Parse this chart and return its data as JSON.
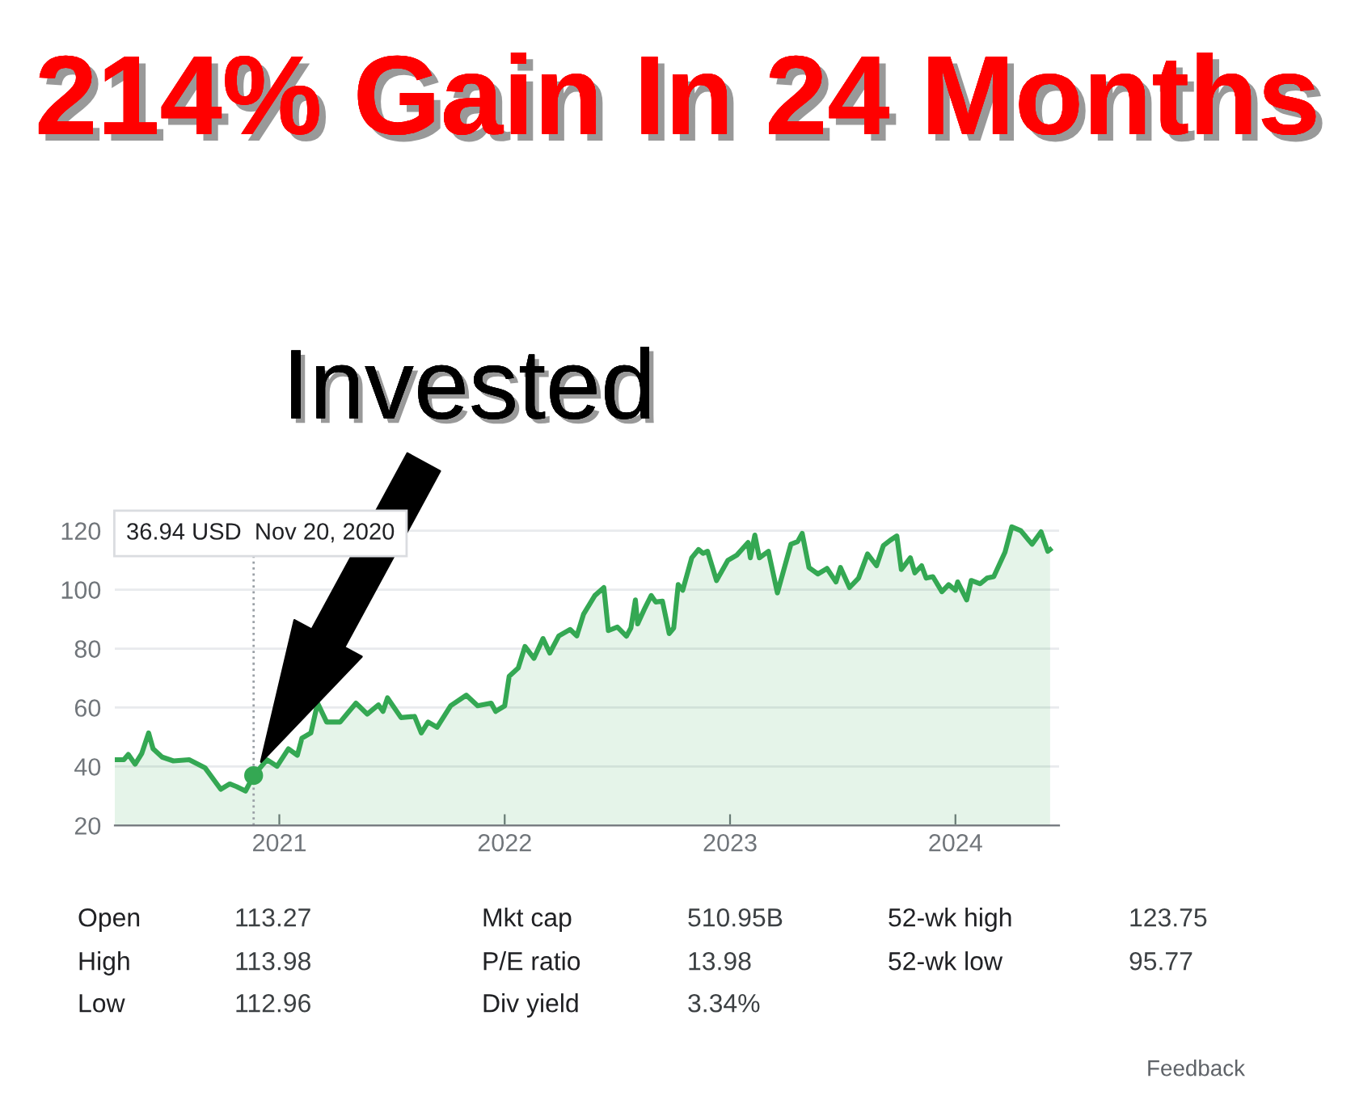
{
  "chart_data": {
    "type": "area",
    "title": "214% Gain In 24 Months",
    "x": [
      2020.27,
      2020.31,
      2020.33,
      2020.36,
      2020.39,
      2020.42,
      2020.44,
      2020.48,
      2020.53,
      2020.6,
      2020.67,
      2020.74,
      2020.78,
      2020.81,
      2020.85,
      2020.886,
      2020.945,
      2020.99,
      2021.04,
      2021.08,
      2021.1,
      2021.14,
      2021.17,
      2021.21,
      2021.27,
      2021.34,
      2021.39,
      2021.44,
      2021.46,
      2021.48,
      2021.54,
      2021.6,
      2021.63,
      2021.66,
      2021.7,
      2021.76,
      2021.83,
      2021.88,
      2021.94,
      2021.96,
      2022.0,
      2022.02,
      2022.06,
      2022.09,
      2022.13,
      2022.17,
      2022.2,
      2022.24,
      2022.29,
      2022.32,
      2022.35,
      2022.4,
      2022.44,
      2022.46,
      2022.5,
      2022.54,
      2022.56,
      2022.58,
      2022.59,
      2022.62,
      2022.65,
      2022.67,
      2022.7,
      2022.73,
      2022.75,
      2022.77,
      2022.79,
      2022.83,
      2022.86,
      2022.88,
      2022.9,
      2022.94,
      2022.99,
      2023.03,
      2023.08,
      2023.09,
      2023.11,
      2023.13,
      2023.17,
      2023.21,
      2023.27,
      2023.3,
      2023.32,
      2023.35,
      2023.39,
      2023.43,
      2023.47,
      2023.49,
      2023.53,
      2023.57,
      2023.61,
      2023.65,
      2023.68,
      2023.71,
      2023.74,
      2023.76,
      2023.8,
      2023.82,
      2023.85,
      2023.87,
      2023.9,
      2023.94,
      2023.97,
      2024.0,
      2024.01,
      2024.05,
      2024.07,
      2024.11,
      2024.14,
      2024.17,
      2024.22,
      2024.25,
      2024.29,
      2024.34,
      2024.38,
      2024.41,
      2024.42
    ],
    "series": [
      {
        "color": "#34a853",
        "values": [
          42.3,
          42.3,
          44.1,
          40.8,
          44.5,
          51.4,
          46.0,
          43.2,
          41.9,
          42.3,
          39.6,
          32.3,
          34.1,
          33.2,
          31.7,
          36.94,
          42.3,
          40.1,
          46.0,
          43.8,
          49.6,
          51.4,
          61.5,
          55.1,
          55.1,
          61.5,
          57.8,
          60.9,
          58.7,
          63.3,
          56.6,
          57.0,
          51.4,
          55.1,
          53.3,
          60.6,
          64.2,
          60.6,
          61.5,
          58.7,
          60.6,
          70.6,
          73.4,
          80.7,
          76.7,
          83.4,
          78.5,
          84.3,
          86.5,
          84.3,
          91.7,
          98.0,
          100.7,
          86.1,
          87.3,
          84.2,
          87.0,
          96.5,
          88.4,
          93.4,
          98.0,
          95.8,
          96.1,
          85.1,
          87.0,
          101.7,
          99.8,
          110.8,
          113.6,
          112.3,
          113.0,
          103.1,
          109.9,
          111.7,
          116.0,
          110.8,
          118.5,
          110.8,
          113.0,
          98.9,
          115.4,
          116.3,
          119.1,
          107.5,
          105.3,
          107.2,
          102.6,
          107.5,
          100.7,
          103.9,
          112.1,
          108.1,
          114.9,
          116.7,
          118.2,
          106.8,
          110.8,
          105.7,
          108.1,
          103.9,
          104.4,
          99.3,
          101.7,
          99.8,
          102.6,
          96.5,
          103.1,
          102.0,
          103.9,
          104.4,
          112.7,
          121.3,
          120.0,
          115.4,
          119.6,
          113.0,
          113.6
        ]
      },
      {
        "type": "scatter",
        "color": "#34a853",
        "x": [
          2020.886
        ],
        "values": [
          36.94
        ],
        "marker": "circle"
      }
    ],
    "xlim": [
      2020.27,
      2024.46
    ],
    "xticks": [
      2021,
      2022,
      2023,
      2024
    ],
    "ylim": [
      20,
      124
    ],
    "yticks": [
      20,
      40,
      60,
      80,
      100,
      120
    ],
    "grid": "y",
    "marker": "none",
    "line_style": "solid",
    "ref_lines": [
      {
        "axis": "x",
        "value": 2020.886,
        "color": "#9aa0a6",
        "line_style": "dotted"
      }
    ],
    "annotations": [
      "36.94 USD  Nov 20, 2020",
      "Invested",
      "Open",
      "113.27",
      "Mkt cap",
      "510.95B",
      "52-wk high",
      "123.75",
      "High",
      "113.98",
      "P/E ratio",
      "13.98",
      "52-wk low",
      "95.77",
      "Low",
      "112.96",
      "Div yield",
      "3.34%",
      "Feedback"
    ]
  }
}
